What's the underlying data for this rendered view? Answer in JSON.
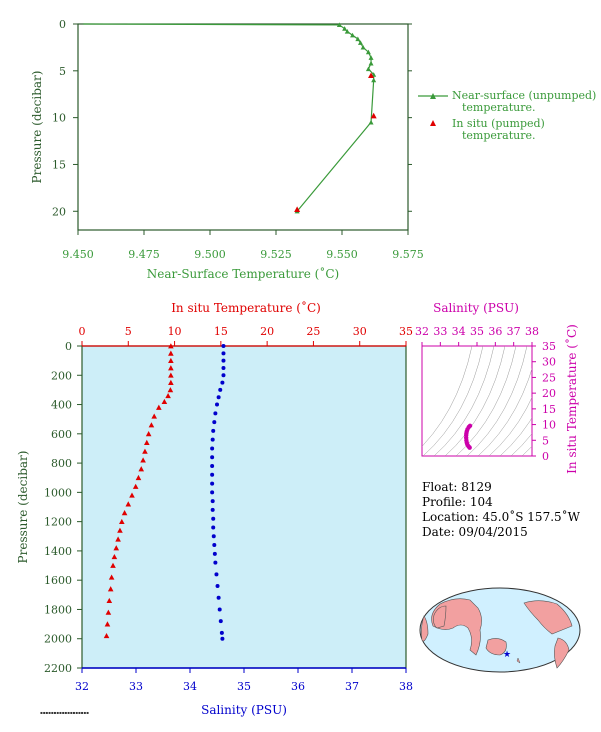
{
  "colors": {
    "green": "#3a9a3a",
    "dark_green": "#2b5a2b",
    "red": "#e00000",
    "blue": "#0000cc",
    "magenta": "#cc00aa",
    "plot_bg": "#cdeef8",
    "land": "#f2a0a0",
    "ocean": "#d0f0ff"
  },
  "top_chart": {
    "xlabel": "Near-Surface Temperature (˚C)",
    "ylabel": "Pressure (decibar)",
    "xticks": [
      "9.450",
      "9.475",
      "9.500",
      "9.525",
      "9.550",
      "9.575"
    ],
    "yticks": [
      "0",
      "5",
      "10",
      "15",
      "20"
    ],
    "legend": {
      "unpumped_line1": "Near-surface (unpumped)",
      "unpumped_line2": "temperature.",
      "pumped_line1": "In situ (pumped)",
      "pumped_line2": "temperature."
    }
  },
  "main_chart": {
    "top_xlabel": "In situ Temperature (˚C)",
    "bottom_xlabel": "Salinity (PSU)",
    "ylabel": "Pressure (decibar)",
    "temp_ticks": [
      "0",
      "5",
      "10",
      "15",
      "20",
      "25",
      "30",
      "35"
    ],
    "sal_ticks": [
      "32",
      "33",
      "34",
      "35",
      "36",
      "37",
      "38"
    ],
    "p_ticks": [
      "0",
      "200",
      "400",
      "600",
      "800",
      "1000",
      "1200",
      "1400",
      "1600",
      "1800",
      "2000",
      "2200"
    ]
  },
  "ts_chart": {
    "title": "Salinity (PSU)",
    "ylabel": "In situ Temperature (˚C)",
    "xticks": [
      "32",
      "33",
      "34",
      "35",
      "36",
      "37",
      "38"
    ],
    "yticks": [
      "0",
      "5",
      "10",
      "15",
      "20",
      "25",
      "30",
      "35"
    ]
  },
  "info": {
    "float": "Float:  8129",
    "profile": "Profile:  104",
    "location": "Location:  45.0˚S  157.5˚W",
    "date": "Date:  09/04/2015"
  },
  "chart_data": [
    {
      "type": "line",
      "title": "",
      "xlabel": "Near-Surface Temperature (˚C)",
      "ylabel": "Pressure (decibar)",
      "xlim": [
        9.45,
        9.575
      ],
      "ylim": [
        22,
        0
      ],
      "series": [
        {
          "name": "Near-surface (unpumped) temperature.",
          "points": [
            [
              9.452,
              0.0
            ],
            [
              9.452,
              -0.2
            ],
            [
              9.549,
              0.1
            ],
            [
              9.551,
              0.5
            ],
            [
              9.552,
              0.8
            ],
            [
              9.554,
              1.2
            ],
            [
              9.556,
              1.6
            ],
            [
              9.557,
              2.0
            ],
            [
              9.558,
              2.5
            ],
            [
              9.56,
              3.0
            ],
            [
              9.561,
              3.6
            ],
            [
              9.561,
              4.2
            ],
            [
              9.56,
              4.8
            ],
            [
              9.562,
              5.4
            ],
            [
              9.562,
              6.0
            ],
            [
              9.561,
              10.5
            ],
            [
              9.533,
              20.0
            ]
          ]
        },
        {
          "name": "In situ (pumped) temperature.",
          "points": [
            [
              9.561,
              5.5
            ],
            [
              9.562,
              9.8
            ],
            [
              9.533,
              19.8
            ]
          ]
        }
      ]
    },
    {
      "type": "scatter",
      "title": "",
      "xlabel": "In situ Temperature (˚C)",
      "ylabel": "Pressure (decibar)",
      "xlim": [
        0,
        35
      ],
      "ylim": [
        2200,
        0
      ],
      "series": [
        {
          "name": "",
          "points": [
            [
              9.6,
              0
            ],
            [
              9.6,
              50
            ],
            [
              9.6,
              100
            ],
            [
              9.6,
              150
            ],
            [
              9.6,
              200
            ],
            [
              9.6,
              250
            ],
            [
              9.55,
              300
            ],
            [
              9.3,
              340
            ],
            [
              8.9,
              380
            ],
            [
              8.3,
              420
            ],
            [
              7.8,
              480
            ],
            [
              7.5,
              540
            ],
            [
              7.2,
              600
            ],
            [
              7.0,
              660
            ],
            [
              6.8,
              720
            ],
            [
              6.6,
              780
            ],
            [
              6.4,
              840
            ],
            [
              6.1,
              900
            ],
            [
              5.8,
              960
            ],
            [
              5.4,
              1020
            ],
            [
              5.0,
              1080
            ],
            [
              4.6,
              1140
            ],
            [
              4.3,
              1200
            ],
            [
              4.1,
              1260
            ],
            [
              3.9,
              1320
            ],
            [
              3.7,
              1380
            ],
            [
              3.5,
              1440
            ],
            [
              3.35,
              1500
            ],
            [
              3.2,
              1580
            ],
            [
              3.1,
              1660
            ],
            [
              2.95,
              1740
            ],
            [
              2.85,
              1820
            ],
            [
              2.75,
              1900
            ],
            [
              2.65,
              1980
            ]
          ]
        }
      ]
    },
    {
      "type": "scatter",
      "title": "",
      "xlabel": "Salinity (PSU)",
      "ylabel": "Pressure (decibar)",
      "xlim": [
        32,
        38
      ],
      "ylim": [
        2200,
        0
      ],
      "series": [
        {
          "name": "",
          "points": [
            [
              34.62,
              0
            ],
            [
              34.62,
              50
            ],
            [
              34.62,
              100
            ],
            [
              34.62,
              150
            ],
            [
              34.62,
              200
            ],
            [
              34.6,
              250
            ],
            [
              34.56,
              300
            ],
            [
              34.53,
              350
            ],
            [
              34.5,
              400
            ],
            [
              34.47,
              460
            ],
            [
              34.45,
              520
            ],
            [
              34.43,
              580
            ],
            [
              34.42,
              640
            ],
            [
              34.41,
              700
            ],
            [
              34.41,
              760
            ],
            [
              34.41,
              820
            ],
            [
              34.41,
              880
            ],
            [
              34.41,
              940
            ],
            [
              34.41,
              1000
            ],
            [
              34.42,
              1060
            ],
            [
              34.42,
              1120
            ],
            [
              34.43,
              1180
            ],
            [
              34.43,
              1240
            ],
            [
              34.44,
              1300
            ],
            [
              34.45,
              1360
            ],
            [
              34.46,
              1420
            ],
            [
              34.47,
              1480
            ],
            [
              34.49,
              1560
            ],
            [
              34.51,
              1640
            ],
            [
              34.53,
              1720
            ],
            [
              34.55,
              1800
            ],
            [
              34.57,
              1880
            ],
            [
              34.59,
              1960
            ],
            [
              34.6,
              2000
            ]
          ]
        }
      ]
    },
    {
      "type": "scatter",
      "title": "Salinity (PSU)",
      "xlabel": "Salinity (PSU)",
      "ylabel": "In situ Temperature (˚C)",
      "xlim": [
        32,
        38
      ],
      "ylim": [
        0,
        35
      ],
      "series": [
        {
          "name": "",
          "points": [
            [
              34.62,
              9.6
            ],
            [
              34.55,
              9.2
            ],
            [
              34.48,
              8.5
            ],
            [
              34.44,
              7.8
            ],
            [
              34.42,
              7.2
            ],
            [
              34.41,
              6.6
            ],
            [
              34.41,
              5.8
            ],
            [
              34.42,
              5.0
            ],
            [
              34.44,
              4.3
            ],
            [
              34.47,
              3.7
            ],
            [
              34.52,
              3.2
            ],
            [
              34.58,
              2.8
            ],
            [
              34.6,
              2.65
            ]
          ]
        }
      ]
    }
  ]
}
